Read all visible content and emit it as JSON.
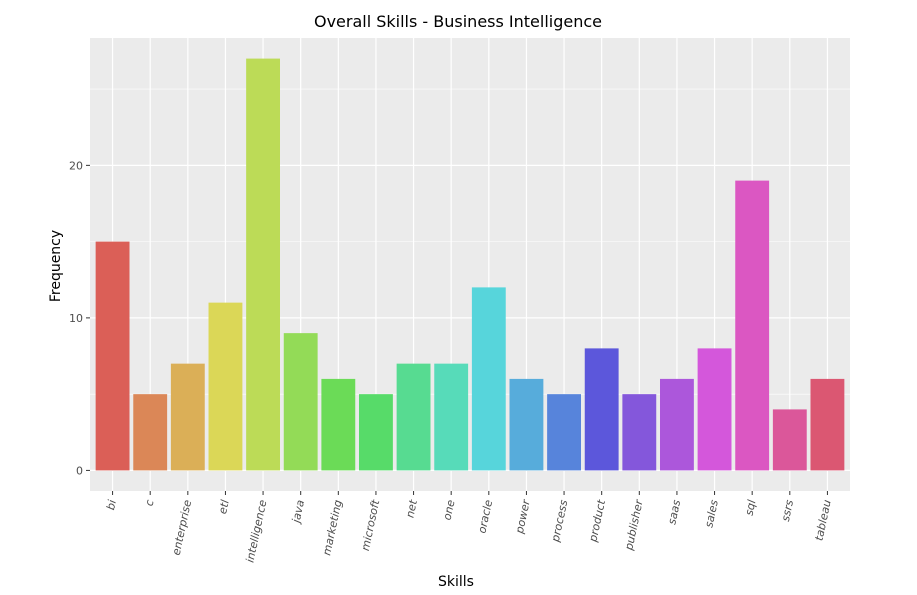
{
  "chart_data": {
    "type": "bar",
    "title": "Overall Skills - Business Intelligence",
    "xlabel": "Skills",
    "ylabel": "Frequency",
    "categories": [
      "bi",
      "c",
      "enterprise",
      "etl",
      "intelligence",
      "java",
      "marketing",
      "microsoft",
      "net",
      "one",
      "oracle",
      "power",
      "process",
      "product",
      "publisher",
      "saas",
      "sales",
      "sql",
      "ssrs",
      "tableau"
    ],
    "values": [
      15,
      5,
      7,
      11,
      27,
      9,
      6,
      5,
      7,
      7,
      12,
      6,
      5,
      8,
      5,
      6,
      8,
      19,
      4,
      6
    ],
    "colors": [
      "#db5f57",
      "#db8757",
      "#dbaf57",
      "#dbd757",
      "#bcdb57",
      "#93db57",
      "#6bdb57",
      "#57db69",
      "#57db91",
      "#57dbb9",
      "#57d5db",
      "#57acdb",
      "#5784db",
      "#5c57db",
      "#8457db",
      "#ac57db",
      "#d457db",
      "#db57c2",
      "#db579a",
      "#db5772"
    ],
    "ylim": [
      -1.35,
      28.35
    ],
    "yticks": [
      0,
      10,
      20
    ],
    "grid": true,
    "legend": "none",
    "panel_background": "#ebebeb",
    "grid_color": "#ffffff"
  }
}
